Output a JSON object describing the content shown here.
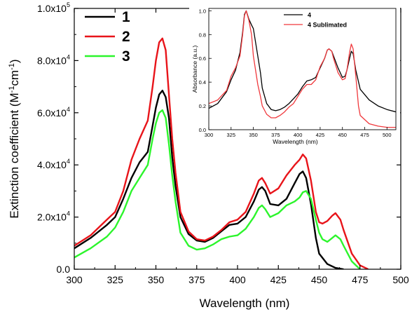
{
  "chart_data": [
    {
      "type": "line",
      "xlabel": "Wavelength (nm)",
      "ylabel": "Extinction coefficient (M-1cm-1)",
      "xlim": [
        300,
        500
      ],
      "ylim": [
        0,
        100000
      ],
      "xticks": [
        "300",
        "325",
        "350",
        "375",
        "400",
        "425",
        "450",
        "475",
        "500"
      ],
      "yticks": [
        {
          "value": 0,
          "label": "0.0"
        },
        {
          "value": 20000,
          "label": "2.0x10",
          "exp": "4"
        },
        {
          "value": 40000,
          "label": "4.0x10",
          "exp": "4"
        },
        {
          "value": 60000,
          "label": "6.0x10",
          "exp": "4"
        },
        {
          "value": 80000,
          "label": "8.0x10",
          "exp": "4"
        },
        {
          "value": 100000,
          "label": "1.0x10",
          "exp": "5"
        }
      ],
      "legend_position": "top-left",
      "series": [
        {
          "name": "1",
          "color": "#000000",
          "x": [
            300,
            310,
            320,
            325,
            330,
            335,
            340,
            345,
            348,
            350,
            352,
            354,
            356,
            358,
            360,
            362,
            365,
            370,
            375,
            380,
            385,
            390,
            395,
            400,
            405,
            410,
            413,
            415,
            417,
            420,
            425,
            430,
            435,
            438,
            440,
            442,
            445,
            448,
            450,
            455,
            460,
            465
          ],
          "y": [
            8000,
            12000,
            17000,
            20000,
            27000,
            35000,
            41000,
            45000,
            55000,
            62000,
            67000,
            68500,
            66000,
            58000,
            43000,
            32000,
            20000,
            13500,
            11000,
            10500,
            12000,
            14500,
            17000,
            17500,
            20000,
            26000,
            30500,
            31500,
            30000,
            25000,
            24500,
            27000,
            33000,
            36500,
            37500,
            35000,
            25000,
            12000,
            6000,
            2000,
            500,
            0
          ]
        },
        {
          "name": "2",
          "color": "#e8141a",
          "x": [
            300,
            310,
            320,
            325,
            330,
            335,
            340,
            345,
            348,
            350,
            352,
            354,
            356,
            358,
            360,
            362,
            365,
            370,
            375,
            380,
            385,
            390,
            395,
            400,
            405,
            410,
            413,
            415,
            417,
            420,
            425,
            430,
            435,
            438,
            440,
            442,
            445,
            448,
            450,
            452,
            455,
            458,
            460,
            463,
            465,
            470,
            475,
            480
          ],
          "y": [
            9000,
            13000,
            19000,
            22000,
            30000,
            42000,
            50000,
            57000,
            70000,
            80000,
            87000,
            88500,
            84000,
            67000,
            50000,
            37000,
            22000,
            14500,
            11500,
            11000,
            12500,
            15000,
            18000,
            19000,
            22000,
            29000,
            34000,
            35000,
            33000,
            29000,
            31000,
            36000,
            40000,
            42000,
            44000,
            42500,
            34000,
            22000,
            18000,
            17500,
            18500,
            20500,
            21500,
            19000,
            15000,
            6000,
            1500,
            0
          ]
        },
        {
          "name": "3",
          "color": "#2cf52c",
          "x": [
            300,
            310,
            320,
            325,
            330,
            335,
            340,
            345,
            348,
            350,
            352,
            354,
            356,
            358,
            360,
            362,
            365,
            370,
            375,
            380,
            385,
            390,
            395,
            400,
            405,
            410,
            413,
            415,
            417,
            420,
            425,
            430,
            435,
            438,
            440,
            442,
            445,
            448,
            450,
            452,
            455,
            458,
            460,
            463,
            465,
            470,
            475
          ],
          "y": [
            4500,
            8000,
            12500,
            16000,
            22000,
            30000,
            35000,
            40000,
            50000,
            56000,
            60000,
            61000,
            58000,
            48000,
            36000,
            26000,
            14000,
            9000,
            7500,
            8000,
            9500,
            11500,
            12500,
            13000,
            15500,
            20000,
            23500,
            24500,
            23000,
            20000,
            21500,
            24500,
            26000,
            27500,
            29500,
            30000,
            27000,
            19000,
            14000,
            11500,
            10500,
            12000,
            13000,
            11500,
            9000,
            3000,
            0
          ]
        }
      ]
    },
    {
      "type": "line",
      "xlabel": "Wavelength (nm)",
      "ylabel": "Absorbance (a.u.)",
      "xlim": [
        300,
        510
      ],
      "ylim": [
        0,
        1.02
      ],
      "xticks": [
        "300",
        "325",
        "350",
        "375",
        "400",
        "425",
        "450",
        "475",
        "500"
      ],
      "yticks": [
        "0.0",
        "0.2",
        "0.4",
        "0.6",
        "0.8",
        "1.0"
      ],
      "legend_position": "top-left",
      "series": [
        {
          "name": "4",
          "color": "#000000",
          "x": [
            300,
            310,
            320,
            325,
            330,
            335,
            338,
            340,
            342,
            345,
            348,
            350,
            355,
            358,
            360,
            365,
            370,
            375,
            380,
            385,
            390,
            395,
            400,
            405,
            410,
            415,
            420,
            425,
            430,
            433,
            435,
            438,
            440,
            445,
            450,
            453,
            455,
            458,
            460,
            462,
            465,
            470,
            480,
            490,
            500,
            510
          ],
          "y": [
            0.18,
            0.22,
            0.32,
            0.42,
            0.5,
            0.65,
            0.82,
            0.97,
            1.0,
            0.93,
            0.88,
            0.85,
            0.62,
            0.48,
            0.35,
            0.22,
            0.17,
            0.16,
            0.17,
            0.19,
            0.22,
            0.26,
            0.3,
            0.36,
            0.41,
            0.42,
            0.44,
            0.52,
            0.6,
            0.67,
            0.68,
            0.66,
            0.62,
            0.52,
            0.44,
            0.45,
            0.5,
            0.6,
            0.66,
            0.64,
            0.5,
            0.34,
            0.25,
            0.2,
            0.17,
            0.15
          ]
        },
        {
          "name": "4 Sublimated",
          "color": "#f0383c",
          "x": [
            300,
            310,
            320,
            325,
            330,
            335,
            338,
            340,
            342,
            345,
            348,
            350,
            355,
            358,
            360,
            365,
            370,
            375,
            380,
            385,
            390,
            395,
            400,
            405,
            410,
            415,
            420,
            425,
            430,
            433,
            435,
            438,
            440,
            445,
            450,
            453,
            455,
            458,
            460,
            462,
            465,
            468,
            470,
            480,
            490,
            500,
            510
          ],
          "y": [
            0.22,
            0.25,
            0.33,
            0.45,
            0.52,
            0.62,
            0.8,
            0.96,
            1.0,
            0.92,
            0.8,
            0.62,
            0.38,
            0.28,
            0.2,
            0.13,
            0.1,
            0.1,
            0.12,
            0.15,
            0.19,
            0.22,
            0.28,
            0.34,
            0.38,
            0.38,
            0.42,
            0.53,
            0.6,
            0.67,
            0.68,
            0.66,
            0.6,
            0.48,
            0.42,
            0.43,
            0.5,
            0.65,
            0.72,
            0.68,
            0.45,
            0.2,
            0.12,
            0.05,
            0.03,
            0.02,
            0.02
          ]
        }
      ]
    }
  ]
}
